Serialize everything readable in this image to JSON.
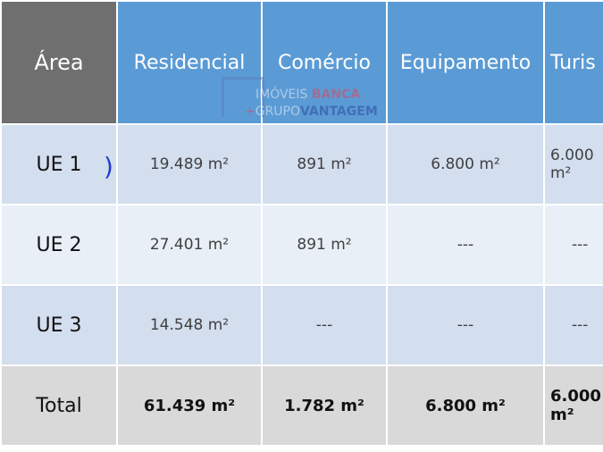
{
  "table": {
    "headers": [
      "Área",
      "Residencial",
      "Comércio",
      "Equipamento",
      "Turis"
    ],
    "rows": [
      [
        "UE 1",
        "19.489 m²",
        "891 m²",
        "6.800 m²",
        "6.000 m²"
      ],
      [
        "UE 2",
        "27.401 m²",
        "891 m²",
        "---",
        "---"
      ],
      [
        "UE 3",
        "14.548 m²",
        "---",
        "---",
        "---"
      ]
    ],
    "total": [
      "Total",
      "61.439 m²",
      "1.782 m²",
      "6.800 m²",
      "6.000 m²"
    ]
  },
  "watermark": {
    "line1a": "IMÓVEIS ",
    "line1b": "BANCA",
    "line2a": "GRUPO",
    "line2b": "VANTAGEM",
    "plus": "+"
  },
  "annotation": ")",
  "colors": {
    "header": "#5b9bd5",
    "header_first": "#6f6f6f",
    "row_dark": "#d3deef",
    "row_light": "#e9eff7",
    "total": "#d9d9d9"
  }
}
